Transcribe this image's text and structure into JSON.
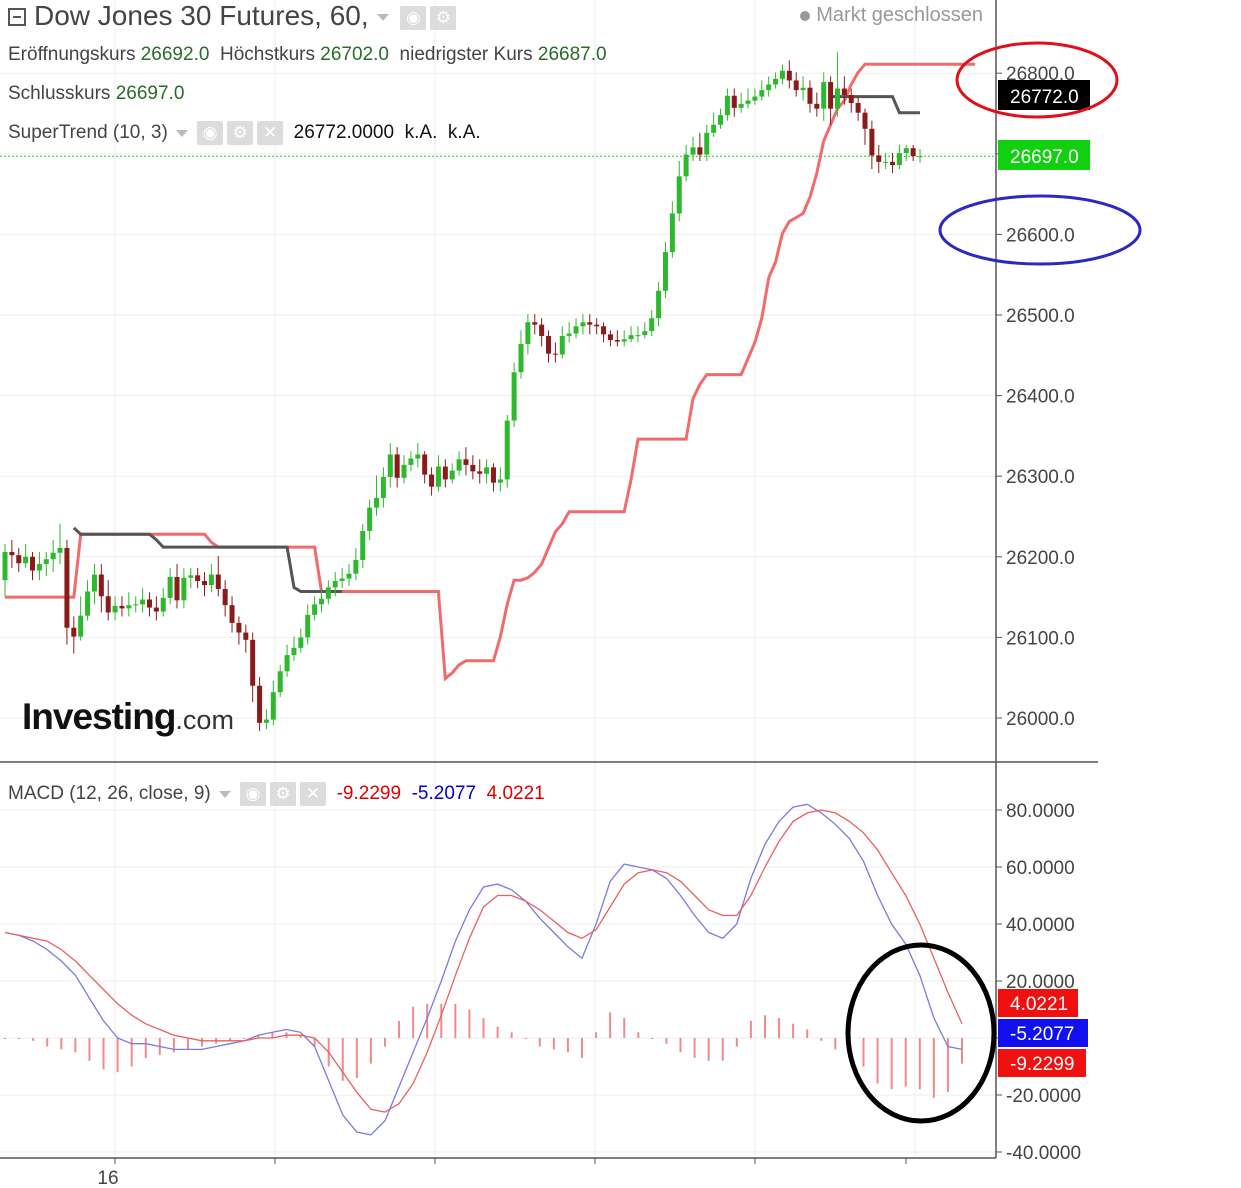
{
  "header": {
    "title": "Dow Jones 30 Futures, 60,",
    "status": "Markt geschlossen",
    "open_label": "Eröffnungskurs",
    "open": "26692.0",
    "high_label": "Höchstkurs",
    "high": "26702.0",
    "low_label": "niedrigster Kurs",
    "low": "26687.0",
    "close_label": "Schlusskurs",
    "close": "26697.0"
  },
  "supertrend": {
    "label": "SuperTrend (10, 3)",
    "value": "26772.0000",
    "na1": "k.A.",
    "na2": "k.A."
  },
  "macd": {
    "label": "MACD (12, 26, close, 9)",
    "hist": "-9.2299",
    "macd": "-5.2077",
    "signal": "4.0221"
  },
  "logo": {
    "main": "Investing",
    "suffix": ".com"
  },
  "colors": {
    "up": "#2eb82e",
    "down": "#8b1a1a",
    "st_up": "#f26b6b",
    "st_down": "#555555",
    "macd_line": "#7a7ae0",
    "signal_line": "#e86060",
    "hist": "#f08a8a",
    "last_price": "#10d010",
    "badge_black": "#000000",
    "badge_red": "#f01010",
    "badge_blue": "#1010f0",
    "ring_red": "#e0101a",
    "ring_blue": "#2a2ac0",
    "ring_black": "#000000"
  },
  "chart_data": [
    {
      "type": "candlestick",
      "ylim": [
        25955,
        26870
      ],
      "y_ticks": [
        "26000.0",
        "26100.0",
        "26200.0",
        "26300.0",
        "26400.0",
        "26500.0",
        "26600.0",
        "26700.0",
        "26800.0"
      ],
      "last_price": "26697.0",
      "supertrend_value": "26772.0",
      "candles": [
        [
          26171,
          26206,
          26216,
          26151
        ],
        [
          26206,
          26202,
          26221,
          26186
        ],
        [
          26202,
          26192,
          26211,
          26181
        ],
        [
          26192,
          26200,
          26216,
          26186
        ],
        [
          26200,
          26183,
          26206,
          26171
        ],
        [
          26183,
          26191,
          26206,
          26171
        ],
        [
          26191,
          26197,
          26206,
          26176
        ],
        [
          26197,
          26205,
          26221,
          26181
        ],
        [
          26205,
          26211,
          26241,
          26191
        ],
        [
          26211,
          26112,
          26221,
          26091
        ],
        [
          26112,
          26101,
          26126,
          26080
        ],
        [
          26101,
          26127,
          26151,
          26096
        ],
        [
          26127,
          26157,
          26171,
          26121
        ],
        [
          26157,
          26178,
          26191,
          26141
        ],
        [
          26178,
          26151,
          26191,
          26131
        ],
        [
          26151,
          26131,
          26171,
          26121
        ],
        [
          26131,
          26139,
          26151,
          26121
        ],
        [
          26139,
          26136,
          26151,
          26126
        ],
        [
          26136,
          26140,
          26156,
          26126
        ],
        [
          26140,
          26141,
          26151,
          26131
        ],
        [
          26141,
          26147,
          26161,
          26131
        ],
        [
          26147,
          26137,
          26156,
          26126
        ],
        [
          26137,
          26132,
          26151,
          26121
        ],
        [
          26132,
          26149,
          26161,
          26126
        ],
        [
          26149,
          26175,
          26186,
          26141
        ],
        [
          26175,
          26146,
          26191,
          26136
        ],
        [
          26146,
          26174,
          26186,
          26136
        ],
        [
          26174,
          26177,
          26186,
          26161
        ],
        [
          26177,
          26170,
          26186,
          26161
        ],
        [
          26170,
          26165,
          26181,
          26151
        ],
        [
          26165,
          26178,
          26191,
          26156
        ],
        [
          26178,
          26160,
          26201,
          26151
        ],
        [
          26160,
          26140,
          26171,
          26126
        ],
        [
          26140,
          26118,
          26151,
          26106
        ],
        [
          26118,
          26106,
          26126,
          26091
        ],
        [
          26106,
          26097,
          26116,
          26081
        ],
        [
          26097,
          26040,
          26106,
          26020
        ],
        [
          26040,
          25994,
          26051,
          25984
        ],
        [
          25994,
          25998,
          26011,
          25986
        ],
        [
          25998,
          26032,
          26046,
          25991
        ],
        [
          26032,
          26058,
          26066,
          26026
        ],
        [
          26058,
          26078,
          26091,
          26051
        ],
        [
          26078,
          26087,
          26101,
          26071
        ],
        [
          26087,
          26100,
          26111,
          26081
        ],
        [
          26100,
          26128,
          26141,
          26091
        ],
        [
          26128,
          26141,
          26151,
          26121
        ],
        [
          26141,
          26148,
          26161,
          26131
        ],
        [
          26148,
          26162,
          26171,
          26141
        ],
        [
          26162,
          26170,
          26181,
          26151
        ],
        [
          26170,
          26173,
          26186,
          26161
        ],
        [
          26173,
          26179,
          26191,
          26164
        ],
        [
          26179,
          26196,
          26211,
          26171
        ],
        [
          26196,
          26232,
          26241,
          26186
        ],
        [
          26232,
          26261,
          26271,
          26221
        ],
        [
          26261,
          26273,
          26301,
          26251
        ],
        [
          26273,
          26299,
          26311,
          26261
        ],
        [
          26299,
          26327,
          26341,
          26286
        ],
        [
          26327,
          26298,
          26336,
          26286
        ],
        [
          26298,
          26314,
          26326,
          26291
        ],
        [
          26314,
          26322,
          26331,
          26306
        ],
        [
          26322,
          26327,
          26341,
          26311
        ],
        [
          26327,
          26302,
          26331,
          26291
        ],
        [
          26302,
          26287,
          26311,
          26276
        ],
        [
          26287,
          26312,
          26326,
          26281
        ],
        [
          26312,
          26296,
          26321,
          26286
        ],
        [
          26296,
          26307,
          26316,
          26291
        ],
        [
          26307,
          26321,
          26331,
          26301
        ],
        [
          26321,
          26314,
          26336,
          26301
        ],
        [
          26314,
          26306,
          26326,
          26296
        ],
        [
          26306,
          26303,
          26321,
          26291
        ],
        [
          26303,
          26311,
          26321,
          26291
        ],
        [
          26311,
          26292,
          26316,
          26281
        ],
        [
          26292,
          26296,
          26311,
          26281
        ],
        [
          26296,
          26369,
          26376,
          26286
        ],
        [
          26369,
          26429,
          26441,
          26361
        ],
        [
          26429,
          26464,
          26481,
          26421
        ],
        [
          26464,
          26491,
          26501,
          26451
        ],
        [
          26491,
          26488,
          26501,
          26476
        ],
        [
          26488,
          26474,
          26496,
          26461
        ],
        [
          26474,
          26452,
          26481,
          26441
        ],
        [
          26452,
          26451,
          26466,
          26441
        ],
        [
          26451,
          26474,
          26486,
          26446
        ],
        [
          26474,
          26477,
          26491,
          26466
        ],
        [
          26477,
          26486,
          26496,
          26471
        ],
        [
          26486,
          26491,
          26501,
          26476
        ],
        [
          26491,
          26488,
          26501,
          26476
        ],
        [
          26488,
          26486,
          26496,
          26476
        ],
        [
          26486,
          26476,
          26491,
          26466
        ],
        [
          26476,
          26469,
          26481,
          26461
        ],
        [
          26469,
          26467,
          26481,
          26461
        ],
        [
          26467,
          26470,
          26481,
          26461
        ],
        [
          26470,
          26475,
          26486,
          26466
        ],
        [
          26475,
          26475,
          26486,
          26466
        ],
        [
          26475,
          26480,
          26491,
          26471
        ],
        [
          26480,
          26496,
          26506,
          26474
        ],
        [
          26496,
          26530,
          26541,
          26486
        ],
        [
          26530,
          26578,
          26591,
          26521
        ],
        [
          26578,
          26626,
          26641,
          26571
        ],
        [
          26626,
          26672,
          26691,
          26616
        ],
        [
          26672,
          26699,
          26711,
          26666
        ],
        [
          26699,
          26708,
          26721,
          26691
        ],
        [
          26708,
          26699,
          26726,
          26691
        ],
        [
          26699,
          26726,
          26736,
          26691
        ],
        [
          26726,
          26736,
          26751,
          26721
        ],
        [
          26736,
          26748,
          26756,
          26731
        ],
        [
          26748,
          26772,
          26781,
          26741
        ],
        [
          26772,
          26757,
          26781,
          26746
        ],
        [
          26757,
          26762,
          26776,
          26751
        ],
        [
          26762,
          26766,
          26781,
          26756
        ],
        [
          26766,
          26771,
          26781,
          26761
        ],
        [
          26771,
          26779,
          26791,
          26766
        ],
        [
          26779,
          26786,
          26796,
          26771
        ],
        [
          26786,
          26793,
          26801,
          26781
        ],
        [
          26793,
          26803,
          26811,
          26786
        ],
        [
          26803,
          26791,
          26816,
          26781
        ],
        [
          26791,
          26779,
          26801,
          26771
        ],
        [
          26779,
          26782,
          26796,
          26766
        ],
        [
          26782,
          26762,
          26791,
          26751
        ],
        [
          26762,
          26756,
          26776,
          26746
        ],
        [
          26756,
          26789,
          26801,
          26741
        ],
        [
          26789,
          26756,
          26796,
          26736
        ],
        [
          26756,
          26781,
          26826,
          26746
        ],
        [
          26781,
          26773,
          26796,
          26761
        ],
        [
          26773,
          26763,
          26781,
          26751
        ],
        [
          26763,
          26751,
          26771,
          26741
        ],
        [
          26751,
          26731,
          26756,
          26711
        ],
        [
          26731,
          26698,
          26741,
          26681
        ],
        [
          26698,
          26690,
          26711,
          26676
        ],
        [
          26690,
          26690,
          26701,
          26681
        ],
        [
          26690,
          26686,
          26701,
          26676
        ],
        [
          26686,
          26701,
          26711,
          26681
        ],
        [
          26701,
          26707,
          26711,
          26691
        ],
        [
          26707,
          26697,
          26711,
          26691
        ],
        [
          26697,
          26697,
          26706,
          26689
        ]
      ],
      "supertrend": [
        26150,
        26150,
        26150,
        26150,
        26150,
        26150,
        26150,
        26150,
        26150,
        26150,
        26150,
        26228,
        26228,
        26228,
        26228,
        26228,
        26228,
        26228,
        26228,
        26228,
        26228,
        26228,
        26228,
        26228,
        26228,
        26228,
        26228,
        26228,
        26228,
        26228,
        26218,
        26212,
        26212,
        26212,
        26212,
        26212,
        26212,
        26212,
        26212,
        26212,
        26212,
        26212,
        26212,
        26212,
        26212,
        26212,
        26157,
        26157,
        26157,
        26157,
        26157,
        26157,
        26157,
        26157,
        26157,
        26157,
        26157,
        26157,
        26157,
        26157,
        26157,
        26157,
        26157,
        26157,
        26049,
        26056,
        26066,
        26071,
        26071,
        26071,
        26071,
        26071,
        26101,
        26141,
        26171,
        26171,
        26174,
        26181,
        26191,
        26211,
        26231,
        26241,
        26256,
        26256,
        26256,
        26256,
        26256,
        26256,
        26256,
        26256,
        26256,
        26296,
        26346,
        26346,
        26346,
        26346,
        26346,
        26346,
        26346,
        26346,
        26396,
        26414,
        26426,
        26426,
        26426,
        26426,
        26426,
        26426,
        26446,
        26466,
        26496,
        26546,
        26566,
        26601,
        26616,
        26621,
        26626,
        26646,
        26676,
        26716,
        26736,
        26756,
        26766,
        26786,
        26801,
        26811,
        26811,
        26811,
        26811,
        26811,
        26811,
        26811,
        26811,
        26811,
        26811,
        26811,
        26811,
        26811,
        26811,
        26811,
        26811,
        26811
      ],
      "supertrend_down": [
        26771,
        26771,
        26771,
        26771,
        26771,
        26771,
        26771,
        26771,
        26771,
        26771,
        26751,
        26751,
        26751,
        26751
      ]
    },
    {
      "type": "macd",
      "ylim": [
        -42,
        84
      ],
      "y_ticks": [
        "-40.0000",
        "-20.0000",
        "0.0000",
        "20.0000",
        "40.0000",
        "60.0000",
        "80.0000"
      ],
      "x_tick_label": "16",
      "badges": [
        "4.0221",
        "-5.2077",
        "-9.2299"
      ],
      "macd_line": [
        37,
        36,
        34,
        31,
        27,
        22,
        14,
        6,
        0,
        -2,
        -2,
        -3,
        -4,
        -4,
        -4,
        -3,
        -2,
        -1,
        1,
        2,
        3,
        2,
        -3,
        -15,
        -27,
        -33,
        -34,
        -29,
        -17,
        -5,
        7,
        20,
        34,
        45,
        53,
        54,
        52,
        48,
        42,
        37,
        32,
        28,
        40,
        55,
        61,
        60,
        59,
        56,
        50,
        43,
        37,
        35,
        40,
        56,
        68,
        76,
        81,
        82,
        79,
        75,
        70,
        62,
        50,
        40,
        33,
        22,
        7,
        -3,
        -4
      ],
      "signal_line": [
        37,
        36,
        35,
        34,
        31,
        27,
        22,
        17,
        12,
        8,
        5,
        3,
        1,
        0,
        -1,
        -1,
        -1,
        -1,
        0,
        0,
        1,
        1,
        0,
        -5,
        -12,
        -19,
        -25,
        -26,
        -23,
        -16,
        -5,
        8,
        22,
        35,
        46,
        50,
        50,
        48,
        45,
        41,
        37,
        35,
        38,
        46,
        54,
        58,
        59,
        58,
        55,
        50,
        45,
        43,
        43,
        50,
        60,
        69,
        76,
        79,
        80,
        79,
        76,
        72,
        66,
        58,
        50,
        40,
        28,
        16,
        5
      ],
      "histogram": [
        0,
        0,
        -1,
        -3,
        -4,
        -5,
        -8,
        -11,
        -12,
        -10,
        -7,
        -6,
        -5,
        -4,
        -3,
        -2,
        -1,
        0,
        1,
        2,
        2,
        1,
        -3,
        -10,
        -15,
        -14,
        -9,
        -3,
        6,
        11,
        12,
        12,
        12,
        10,
        7,
        4,
        2,
        0,
        -3,
        -4,
        -5,
        -7,
        2,
        9,
        7,
        2,
        0,
        -2,
        -5,
        -7,
        -8,
        -8,
        -3,
        6,
        8,
        7,
        5,
        3,
        -1,
        -4,
        -6,
        -10,
        -16,
        -18,
        -17,
        -18,
        -21,
        -19,
        -9
      ]
    }
  ]
}
